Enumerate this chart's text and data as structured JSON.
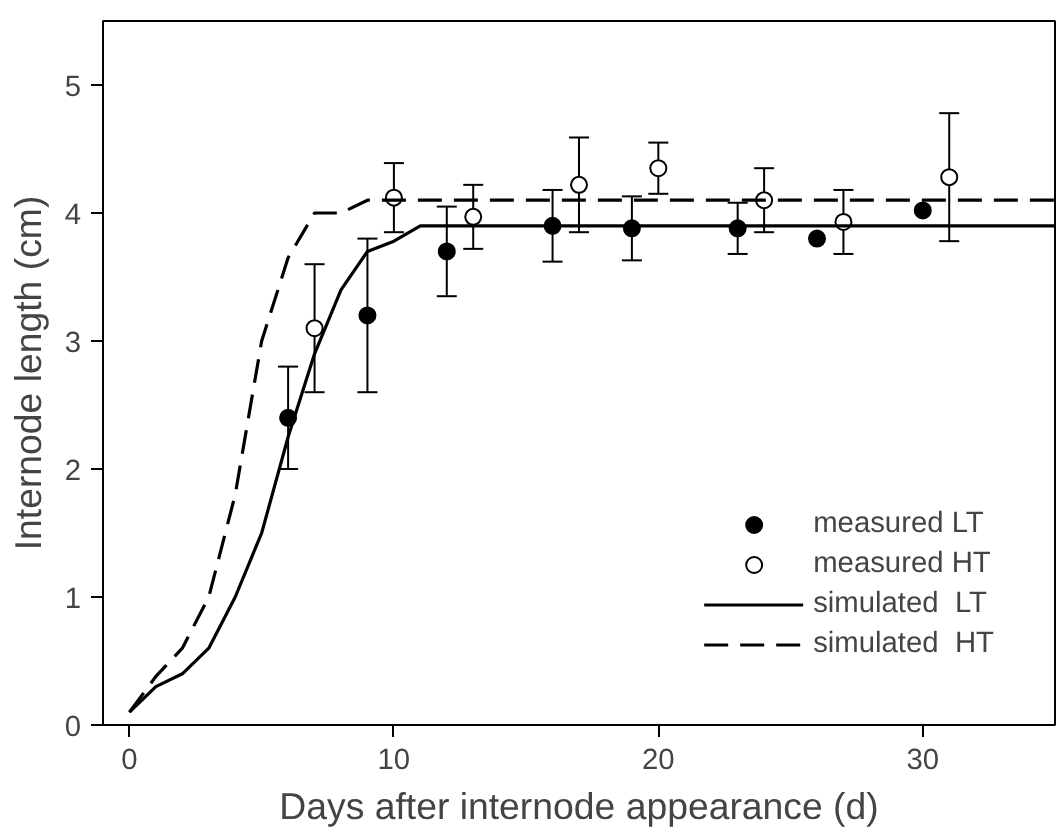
{
  "chart_data": {
    "type": "scatter",
    "xlabel": "Days after internode appearance (d)",
    "ylabel": "Internode length (cm)",
    "xlim": [
      -1,
      35
    ],
    "ylim": [
      0,
      5.5
    ],
    "xticks": [
      0,
      10,
      20,
      30
    ],
    "yticks": [
      0,
      1,
      2,
      3,
      4,
      5
    ],
    "grid": false,
    "legend": "bottom right",
    "series": [
      {
        "name": "measured LT",
        "marker": "circle",
        "color": "#000000",
        "x": [
          6,
          9,
          12,
          16,
          19,
          23,
          26,
          30
        ],
        "values": [
          2.4,
          3.2,
          3.7,
          3.9,
          3.88,
          3.88,
          3.8,
          4.02
        ],
        "errors": [
          0.4,
          0.6,
          0.35,
          0.28,
          0.25,
          0.2,
          null,
          null
        ]
      },
      {
        "name": "measured HT",
        "marker": "circle",
        "color": "#ffffff",
        "x": [
          7,
          10,
          13,
          17,
          20,
          24,
          27,
          31
        ],
        "values": [
          3.1,
          4.12,
          3.97,
          4.22,
          4.35,
          4.1,
          3.93,
          4.28
        ],
        "errors": [
          0.5,
          0.27,
          0.25,
          0.37,
          0.2,
          0.25,
          0.25,
          0.5
        ]
      },
      {
        "name": "simulated  LT",
        "type": "line",
        "line_style": "solid",
        "color": "#000000",
        "x": [
          0,
          1,
          2,
          3,
          4,
          5,
          6,
          7,
          8,
          9,
          10,
          11,
          35
        ],
        "values": [
          0.1,
          0.3,
          0.4,
          0.6,
          1.0,
          1.5,
          2.25,
          2.9,
          3.4,
          3.7,
          3.78,
          3.9,
          3.9
        ]
      },
      {
        "name": "simulated  HT",
        "type": "line",
        "line_style": "dashed",
        "color": "#000000",
        "x": [
          0,
          1,
          2,
          3,
          4,
          5,
          6,
          7,
          8,
          9,
          35
        ],
        "values": [
          0.1,
          0.38,
          0.6,
          1.0,
          1.8,
          3.0,
          3.65,
          4.0,
          4.0,
          4.1,
          4.1
        ]
      }
    ]
  }
}
